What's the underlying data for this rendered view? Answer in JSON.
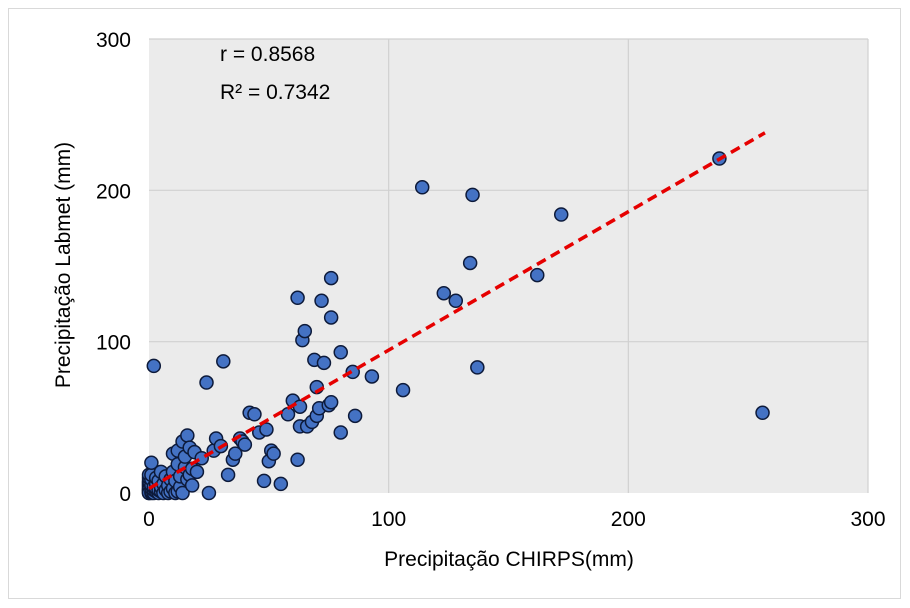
{
  "chart_data": {
    "type": "scatter",
    "title": "",
    "xlabel": "Precipitação  CHIRPS(mm)",
    "ylabel": "Precipitação  Labmet (mm)",
    "xlim": [
      0,
      300
    ],
    "ylim": [
      0,
      300
    ],
    "x_ticks": [
      "0",
      "100",
      "200",
      "300"
    ],
    "y_ticks": [
      "0",
      "100",
      "200",
      "300"
    ],
    "grid": true,
    "legend": "none",
    "annotations": {
      "r_text": "r = 0.8568",
      "r2_text": "R² = 0.7342"
    },
    "colors": {
      "plot_background": "#ebebeb",
      "gridline": "#d0d0d0",
      "marker_fill": "#4472c4",
      "marker_stroke": "#0d1a3a",
      "trendline": "#e60000"
    },
    "trendline": {
      "x": [
        0,
        257
      ],
      "y": [
        3,
        238
      ],
      "style": "dashed"
    },
    "series": [
      {
        "x": [
          0,
          0,
          0,
          0,
          0,
          0,
          0,
          0,
          0,
          0,
          0,
          0,
          0,
          1,
          1,
          1,
          1,
          1,
          1,
          1,
          2,
          2,
          2,
          2,
          3,
          3,
          3,
          3,
          4,
          4,
          4,
          5,
          5,
          5,
          6,
          6,
          7,
          7,
          8,
          8,
          9,
          9,
          10,
          10,
          10,
          11,
          11,
          12,
          12,
          12,
          13,
          13,
          14,
          14,
          15,
          15,
          16,
          16,
          17,
          17,
          18,
          18,
          19,
          20,
          22,
          24,
          25,
          27,
          28,
          30,
          31,
          33,
          35,
          36,
          38,
          39,
          40,
          42,
          44,
          46,
          48,
          49,
          50,
          51,
          52,
          55,
          58,
          60,
          62,
          62,
          63,
          63,
          64,
          65,
          66,
          68,
          69,
          70,
          70,
          71,
          72,
          73,
          75,
          76,
          76,
          76,
          80,
          80,
          85,
          86,
          93,
          106,
          114,
          123,
          128,
          134,
          135,
          137,
          162,
          172,
          238,
          256
        ],
        "y": [
          0,
          1,
          2,
          3,
          4,
          5,
          6,
          7,
          8,
          10,
          12,
          2,
          0,
          0,
          1,
          3,
          5,
          9,
          12,
          20,
          0,
          2,
          4,
          84,
          1,
          3,
          6,
          10,
          0,
          2,
          8,
          1,
          4,
          14,
          0,
          6,
          2,
          11,
          0,
          5,
          1,
          9,
          3,
          14,
          26,
          0,
          8,
          1,
          28,
          19,
          4,
          11,
          0,
          34,
          17,
          24,
          9,
          38,
          30,
          12,
          5,
          16,
          27,
          14,
          23,
          73,
          0,
          28,
          36,
          31,
          87,
          12,
          22,
          26,
          36,
          34,
          32,
          53,
          52,
          40,
          8,
          42,
          21,
          28,
          26,
          6,
          52,
          61,
          22,
          129,
          57,
          44,
          101,
          107,
          44,
          47,
          88,
          70,
          51,
          56,
          127,
          86,
          58,
          116,
          142,
          60,
          40,
          93,
          80,
          51,
          77,
          68,
          202,
          132,
          127,
          152,
          197,
          83,
          144,
          184,
          221,
          53
        ]
      }
    ]
  }
}
